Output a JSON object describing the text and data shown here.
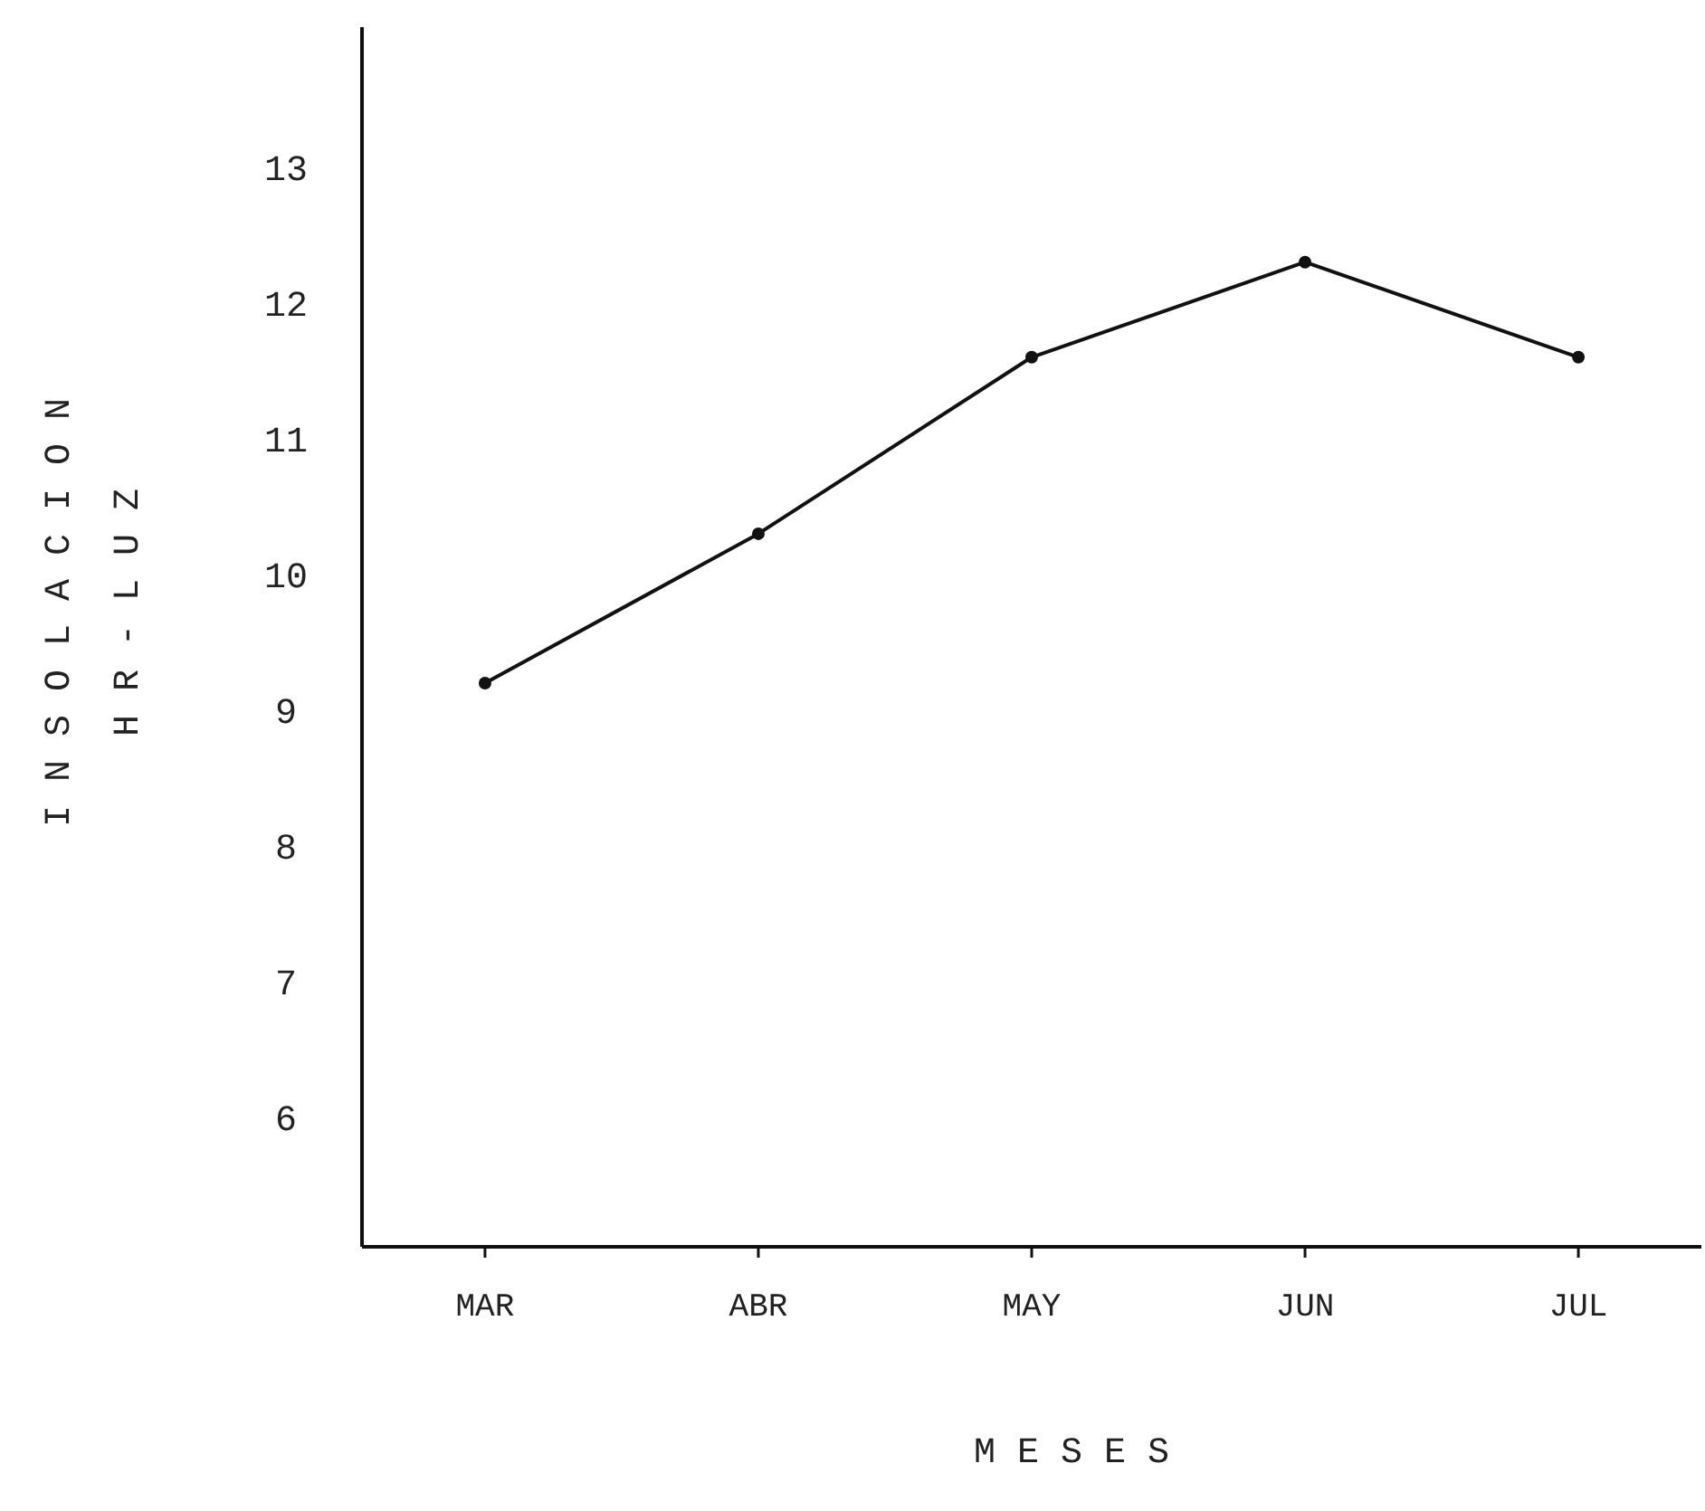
{
  "chart_data": {
    "type": "line",
    "xlabel": "MESES",
    "ylabel": "INSOLACION\nHR-LUZ",
    "categories": [
      "MAR",
      "ABR",
      "MAY",
      "JUN",
      "JUL"
    ],
    "series": [
      {
        "color": "#111111",
        "values": [
          9.2,
          10.3,
          11.6,
          12.3,
          11.6
        ]
      }
    ],
    "ylim": [
      5.05,
      14.03
    ],
    "yticks": [
      6,
      7,
      8,
      9,
      10,
      11,
      12,
      13
    ],
    "marker": "circle",
    "line_style": "solid",
    "grid": false
  }
}
